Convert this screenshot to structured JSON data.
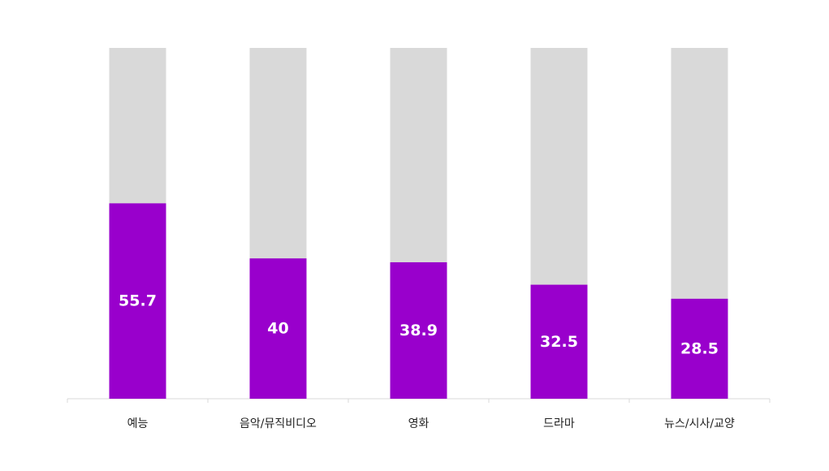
{
  "chart_data": {
    "type": "bar",
    "stacked_with_remainder": true,
    "categories": [
      "예능",
      "음악/뮤직비디오",
      "영화",
      "드라마",
      "뉴스/시사/교양"
    ],
    "values": [
      55.7,
      40,
      38.9,
      32.5,
      28.5
    ],
    "value_labels": [
      "55.7",
      "40",
      "38.9",
      "32.5",
      "28.5"
    ],
    "ylim": [
      0,
      100
    ],
    "grid": false,
    "legend": "none",
    "colors": {
      "value_bar": "#9900CC",
      "remainder_bar": "#D9D9D9",
      "axis": "#D9D9D9",
      "label_text": "#FFFFFF",
      "category_text": "#222222"
    }
  }
}
